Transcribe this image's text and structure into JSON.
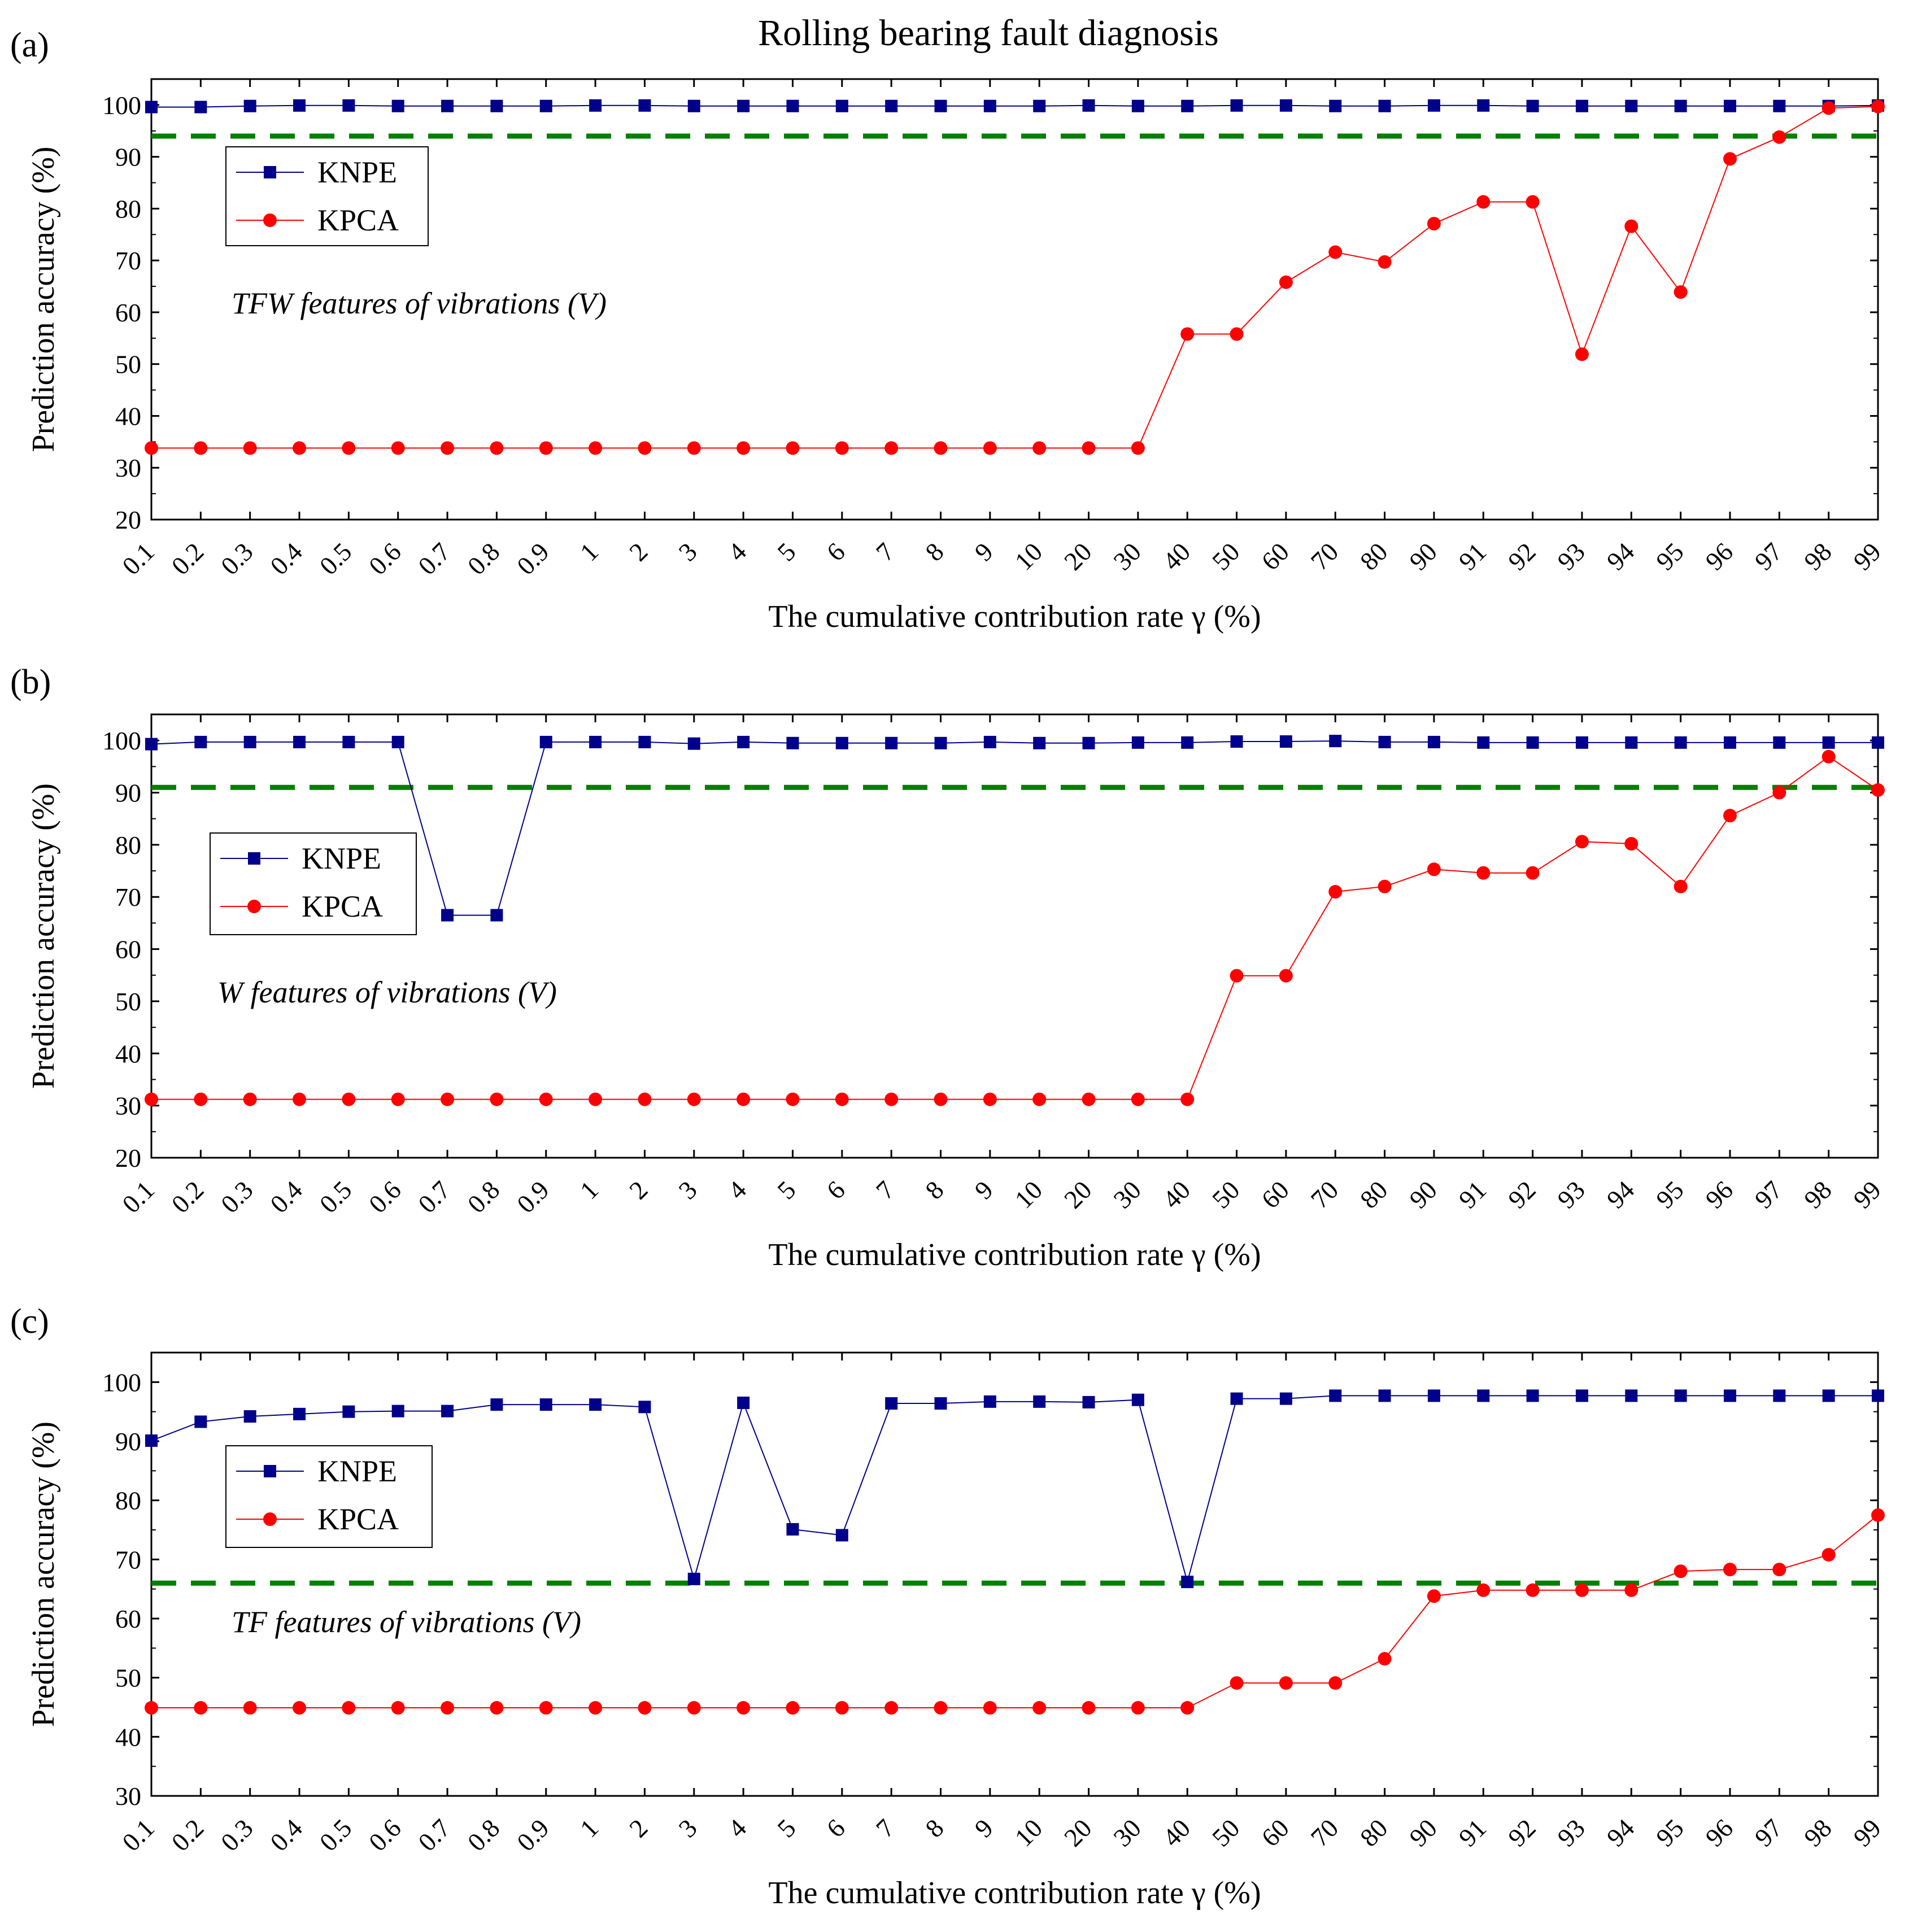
{
  "title": "Rolling bearing fault diagnosis",
  "colors": {
    "knpe": "#00008B",
    "kpca": "#FF0000",
    "baseline": "#008000"
  },
  "chart_data": [
    {
      "type": "line",
      "panel_label": "(a)",
      "title": "Rolling bearing fault diagnosis",
      "annotation": "TFW features of vibrations (V)",
      "xlabel": "The cumulative contribution rate γ (%)",
      "ylabel": "Prediction accuracy (%)",
      "ylim": [
        20,
        105
      ],
      "yticks": [
        "20",
        "30",
        "40",
        "50",
        "60",
        "70",
        "80",
        "90",
        "100"
      ],
      "categories": [
        "0.1",
        "0.2",
        "0.3",
        "0.4",
        "0.5",
        "0.6",
        "0.7",
        "0.8",
        "0.9",
        "1",
        "2",
        "3",
        "4",
        "5",
        "6",
        "7",
        "8",
        "9",
        "10",
        "20",
        "30",
        "40",
        "50",
        "60",
        "70",
        "80",
        "90",
        "91",
        "92",
        "93",
        "94",
        "95",
        "96",
        "97",
        "98",
        "99"
      ],
      "baseline": 94,
      "legend": [
        "KNPE",
        "KPCA"
      ],
      "series": [
        {
          "name": "KNPE",
          "values": [
            99.6,
            99.6,
            99.8,
            99.9,
            99.9,
            99.8,
            99.8,
            99.8,
            99.8,
            99.9,
            99.9,
            99.8,
            99.8,
            99.8,
            99.8,
            99.8,
            99.8,
            99.8,
            99.8,
            99.9,
            99.8,
            99.8,
            99.9,
            99.9,
            99.8,
            99.8,
            99.9,
            99.9,
            99.8,
            99.8,
            99.8,
            99.8,
            99.8,
            99.8,
            99.8,
            99.9
          ]
        },
        {
          "name": "KPCA",
          "values": [
            33.8,
            33.8,
            33.8,
            33.8,
            33.8,
            33.8,
            33.8,
            33.8,
            33.8,
            33.8,
            33.8,
            33.8,
            33.8,
            33.8,
            33.8,
            33.8,
            33.8,
            33.8,
            33.8,
            33.8,
            33.8,
            55.8,
            55.8,
            65.8,
            71.6,
            69.7,
            77.1,
            81.3,
            81.3,
            51.9,
            76.6,
            63.9,
            89.6,
            93.8,
            99.4,
            99.7
          ]
        }
      ]
    },
    {
      "type": "line",
      "panel_label": "(b)",
      "annotation": "W features of vibrations (V)",
      "xlabel": "The cumulative contribution rate γ (%)",
      "ylabel": "Prediction accuracy (%)",
      "ylim": [
        20,
        105
      ],
      "yticks": [
        "20",
        "30",
        "40",
        "50",
        "60",
        "70",
        "80",
        "90",
        "100"
      ],
      "categories": [
        "0.1",
        "0.2",
        "0.3",
        "0.4",
        "0.5",
        "0.6",
        "0.7",
        "0.8",
        "0.9",
        "1",
        "2",
        "3",
        "4",
        "5",
        "6",
        "7",
        "8",
        "9",
        "10",
        "20",
        "30",
        "40",
        "50",
        "60",
        "70",
        "80",
        "90",
        "91",
        "92",
        "93",
        "94",
        "95",
        "96",
        "97",
        "98",
        "99"
      ],
      "baseline": 91,
      "legend": [
        "KNPE",
        "KPCA"
      ],
      "series": [
        {
          "name": "KNPE",
          "values": [
            99.3,
            99.7,
            99.7,
            99.7,
            99.7,
            99.7,
            66.5,
            66.5,
            99.7,
            99.7,
            99.7,
            99.4,
            99.7,
            99.5,
            99.5,
            99.5,
            99.5,
            99.7,
            99.5,
            99.5,
            99.6,
            99.6,
            99.8,
            99.8,
            99.9,
            99.7,
            99.7,
            99.6,
            99.6,
            99.6,
            99.6,
            99.6,
            99.6,
            99.6,
            99.6,
            99.6
          ]
        },
        {
          "name": "KPCA",
          "values": [
            31.2,
            31.2,
            31.2,
            31.2,
            31.2,
            31.2,
            31.2,
            31.2,
            31.2,
            31.2,
            31.2,
            31.2,
            31.2,
            31.2,
            31.2,
            31.2,
            31.2,
            31.2,
            31.2,
            31.2,
            31.2,
            31.2,
            54.9,
            54.9,
            71.0,
            72.0,
            75.3,
            74.6,
            74.6,
            80.6,
            80.2,
            72.0,
            85.6,
            90.0,
            96.9,
            90.5
          ]
        }
      ]
    },
    {
      "type": "line",
      "panel_label": "(c)",
      "annotation": "TF features of vibrations (V)",
      "xlabel": "The cumulative contribution rate γ (%)",
      "ylabel": "Prediction accuracy (%)",
      "ylim": [
        30,
        105
      ],
      "yticks": [
        "30",
        "40",
        "50",
        "60",
        "70",
        "80",
        "90",
        "100"
      ],
      "categories": [
        "0.1",
        "0.2",
        "0.3",
        "0.4",
        "0.5",
        "0.6",
        "0.7",
        "0.8",
        "0.9",
        "1",
        "2",
        "3",
        "4",
        "5",
        "6",
        "7",
        "8",
        "9",
        "10",
        "20",
        "30",
        "40",
        "50",
        "60",
        "70",
        "80",
        "90",
        "91",
        "92",
        "93",
        "94",
        "95",
        "96",
        "97",
        "98",
        "99"
      ],
      "baseline": 66,
      "legend": [
        "KNPE",
        "KPCA"
      ],
      "series": [
        {
          "name": "KNPE",
          "values": [
            90.1,
            93.3,
            94.2,
            94.6,
            95.0,
            95.1,
            95.1,
            96.2,
            96.2,
            96.2,
            95.8,
            66.7,
            96.5,
            75.1,
            74.1,
            96.4,
            96.4,
            96.7,
            96.7,
            96.6,
            97.0,
            66.2,
            97.2,
            97.2,
            97.7,
            97.7,
            97.7,
            97.7,
            97.7,
            97.7,
            97.7,
            97.7,
            97.7,
            97.7,
            97.7,
            97.7
          ]
        },
        {
          "name": "KPCA",
          "values": [
            44.9,
            44.9,
            44.9,
            44.9,
            44.9,
            44.9,
            44.9,
            44.9,
            44.9,
            44.9,
            44.9,
            44.9,
            44.9,
            44.9,
            44.9,
            44.9,
            44.9,
            44.9,
            44.9,
            44.9,
            44.9,
            44.9,
            49.1,
            49.1,
            49.1,
            53.2,
            63.8,
            64.8,
            64.8,
            64.8,
            64.8,
            68.0,
            68.3,
            68.3,
            70.8,
            77.5
          ]
        }
      ]
    }
  ]
}
